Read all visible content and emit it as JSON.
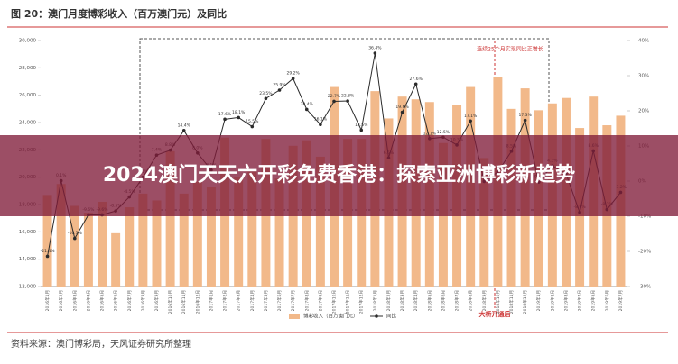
{
  "chart_data": {
    "type": "bar-line",
    "title": "图 20：澳门月度博彩收入（百万澳门元）及同比",
    "source": "资料来源：澳门博彩局，天风证券研究所整理",
    "overlay_title": "2024澳门天天六开彩免费香港：探索亚洲博彩新趋势",
    "annotations": [
      "连续25个月实现同比正增长",
      "大桥开通后"
    ],
    "categories": [
      "2016年1月",
      "2016年2月",
      "2016年3月",
      "2016年4月",
      "2016年5月",
      "2016年6月",
      "2016年7月",
      "2016年8月",
      "2016年9月",
      "2016年10月",
      "2016年11月",
      "2016年12月",
      "2017年1月",
      "2017年2月",
      "2017年3月",
      "2017年4月",
      "2017年5月",
      "2017年6月",
      "2017年7月",
      "2017年8月",
      "2017年9月",
      "2017年10月",
      "2017年11月",
      "2017年12月",
      "2018年1月",
      "2018年2月",
      "2018年3月",
      "2018年4月",
      "2018年5月",
      "2018年6月",
      "2018年7月",
      "2018年8月",
      "2018年9月",
      "2018年10月",
      "2018年11月",
      "2018年12月",
      "2019年1月",
      "2019年2月",
      "2019年3月",
      "2019年4月",
      "2019年5月",
      "2019年6月",
      "2019年7月"
    ],
    "series": [
      {
        "name": "博彩收入（百万澳门元）",
        "color": "#f2b98a",
        "values": [
          18700,
          19500,
          17900,
          17400,
          18200,
          15900,
          17800,
          18800,
          18300,
          21900,
          18800,
          19700,
          19300,
          22900,
          20000,
          20400,
          22800,
          19900,
          22300,
          22700,
          21500,
          26600,
          22800,
          22800,
          26300,
          24300,
          25900,
          25700,
          25500,
          22500,
          25300,
          26600,
          21400,
          27300,
          25000,
          26500,
          24900,
          25400,
          25800,
          23600,
          25900,
          23800,
          24500
        ]
      },
      {
        "name": "同比",
        "color": "#2b2b2b",
        "axis": "y2",
        "values": [
          -21.4,
          0.1,
          -16.3,
          -9.6,
          -9.6,
          -8.5,
          -4.5,
          1.1,
          7.4,
          8.8,
          14.4,
          8.0,
          3.1,
          17.6,
          18.1,
          15.5,
          23.5,
          25.9,
          29.2,
          20.4,
          16.1,
          22.7,
          22.8,
          14.5,
          36.4,
          6.6,
          19.6,
          27.6,
          12.1,
          12.5,
          10.3,
          17.1,
          -0.1,
          2.6,
          8.5,
          17.3,
          -0.3,
          4.3,
          2.1,
          -8.9,
          8.6,
          -8.1,
          -3.2
        ],
        "value_labels": [
          "-21.4%",
          "0.1%",
          "-16.3%",
          "-9.6%",
          "-9.6%",
          "-8.5%",
          "-4.5%",
          "1.1%",
          "7.4%",
          "8.8%",
          "14.4%",
          "8.0%",
          "3.1%",
          "17.6%",
          "18.1%",
          "15.5%",
          "23.5%",
          "25.9%",
          "29.2%",
          "20.4%",
          "16.1%",
          "22.7%",
          "22.8%",
          "14.5%",
          "36.4%",
          "6.6%",
          "19.6%",
          "27.6%",
          "12.1%",
          "12.5%",
          "10.3%",
          "17.1%",
          "-0.1%",
          "2.6%",
          "8.5%",
          "17.3%",
          "-0.3%",
          "4.3%",
          "2.1%",
          "-8.9%",
          "8.6%",
          "-8.1%",
          "-3.2%"
        ]
      }
    ],
    "ylim": [
      12000,
      30000
    ],
    "yticks": [
      {
        "value": 12000,
        "label": "12,000"
      },
      {
        "value": 14000,
        "label": "14,000"
      },
      {
        "value": 16000,
        "label": "16,000"
      },
      {
        "value": 18000,
        "label": "18,000"
      },
      {
        "value": 20000,
        "label": "20,000"
      },
      {
        "value": 22000,
        "label": "22,000"
      },
      {
        "value": 24000,
        "label": "24,000"
      },
      {
        "value": 26000,
        "label": "26,000"
      },
      {
        "value": 28000,
        "label": "28,000"
      },
      {
        "value": 30000,
        "label": "30,000"
      }
    ],
    "y2lim": [
      -30,
      40
    ],
    "y2ticks": [
      {
        "value": -30,
        "label": "-30%"
      },
      {
        "value": -20,
        "label": "-20%"
      },
      {
        "value": -10,
        "label": "-10%"
      },
      {
        "value": 0,
        "label": "0%"
      },
      {
        "value": 10,
        "label": "10%"
      },
      {
        "value": 20,
        "label": "20%"
      },
      {
        "value": 30,
        "label": "30%"
      },
      {
        "value": 40,
        "label": "40%"
      }
    ],
    "grid": false
  }
}
